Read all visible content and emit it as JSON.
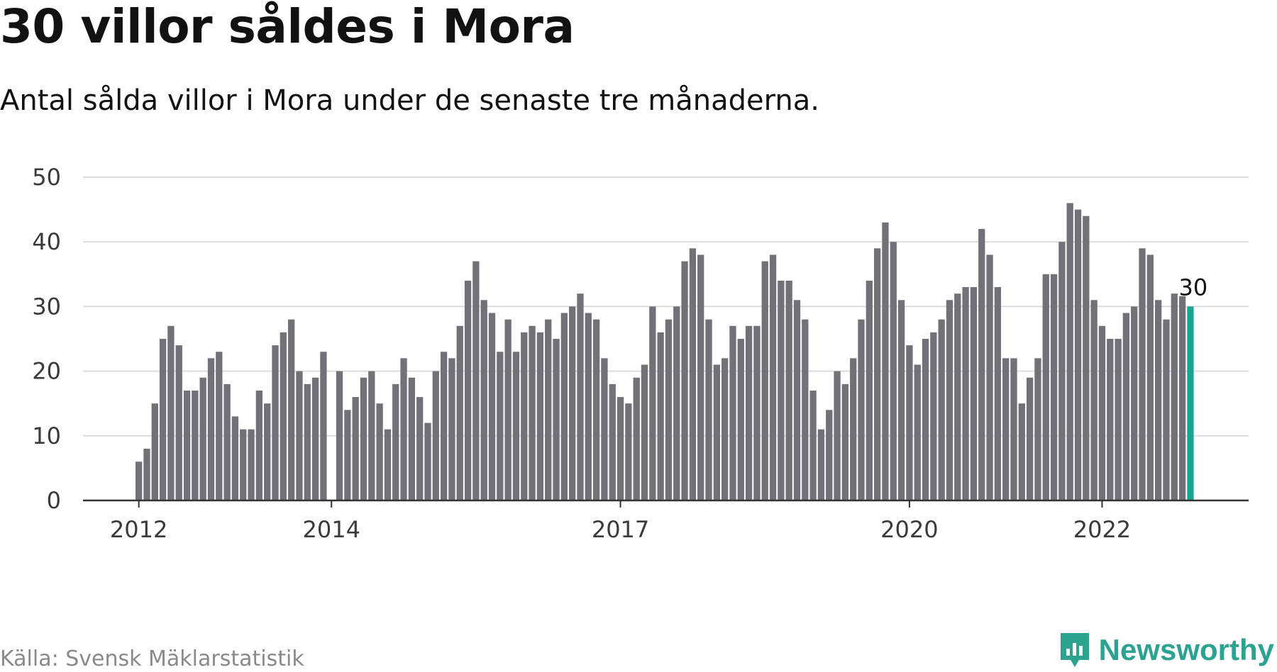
{
  "header": {
    "title": "30 villor såldes i Mora",
    "subtitle": "Antal sålda villor i Mora under de senaste tre månaderna."
  },
  "footer": {
    "source": "Källa: Svensk Mäklarstatistik",
    "logo_text": "Newsworthy",
    "logo_icon": "newsworthy-chart-icon"
  },
  "colors": {
    "bar": "#727178",
    "highlight": "#1ca391",
    "grid": "#dcdcdc",
    "axis": "#333333",
    "brand": "#2ca291"
  },
  "chart_data": {
    "type": "bar",
    "title": "30 villor såldes i Mora",
    "subtitle": "Antal sålda villor i Mora under de senaste tre månaderna.",
    "xlabel": "",
    "ylabel": "",
    "ylim": [
      0,
      50
    ],
    "yticks": [
      0,
      10,
      20,
      30,
      40,
      50
    ],
    "grid": true,
    "x_tick_labels": [
      {
        "label": "2012",
        "index": 0
      },
      {
        "label": "2014",
        "index": 24
      },
      {
        "label": "2017",
        "index": 60
      },
      {
        "label": "2020",
        "index": 96
      },
      {
        "label": "2022",
        "index": 120
      }
    ],
    "values": [
      6,
      8,
      15,
      25,
      27,
      24,
      17,
      17,
      19,
      22,
      23,
      18,
      13,
      11,
      11,
      17,
      15,
      24,
      26,
      28,
      20,
      18,
      19,
      23,
      0,
      20,
      14,
      16,
      19,
      20,
      15,
      11,
      18,
      22,
      19,
      16,
      12,
      20,
      23,
      22,
      27,
      34,
      37,
      31,
      29,
      23,
      28,
      23,
      26,
      27,
      26,
      28,
      25,
      29,
      30,
      32,
      29,
      28,
      22,
      18,
      16,
      15,
      19,
      21,
      30,
      26,
      28,
      30,
      37,
      39,
      38,
      28,
      21,
      22,
      27,
      25,
      27,
      27,
      37,
      38,
      34,
      34,
      31,
      28,
      17,
      11,
      14,
      20,
      18,
      22,
      28,
      34,
      39,
      43,
      40,
      31,
      24,
      21,
      25,
      26,
      28,
      31,
      32,
      33,
      33,
      42,
      38,
      33,
      22,
      22,
      15,
      19,
      22,
      35,
      35,
      40,
      46,
      45,
      44,
      31,
      27,
      25,
      25,
      29,
      30,
      39,
      38,
      31,
      28,
      32,
      31.6,
      30
    ],
    "highlight_index": 131,
    "annotation": {
      "label": "30",
      "index": 131,
      "value": 30
    }
  }
}
